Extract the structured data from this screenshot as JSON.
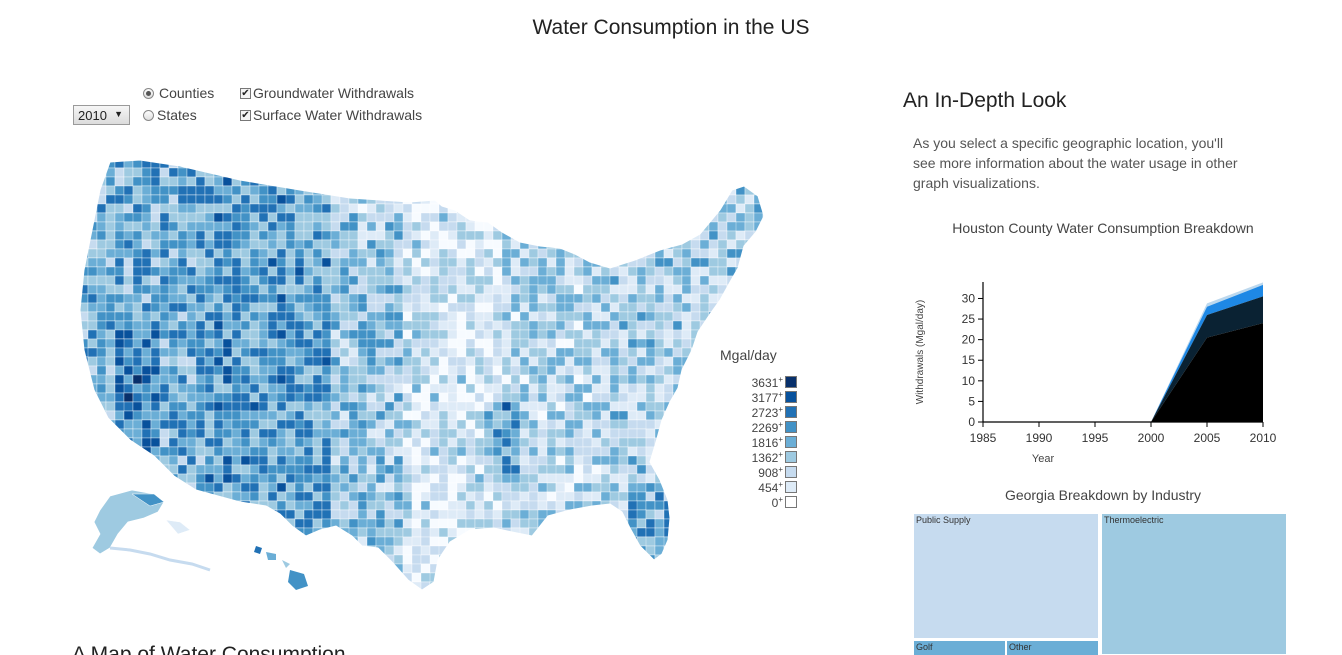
{
  "page": {
    "title": "Water Consumption in the US",
    "map_section_title": "A Map of Water Consumption"
  },
  "controls": {
    "year": {
      "selected": "2010"
    },
    "geo_level": [
      {
        "label": "Counties",
        "checked": true
      },
      {
        "label": "States",
        "checked": false
      }
    ],
    "layers": [
      {
        "label": "Groundwater Withdrawals",
        "checked": true
      },
      {
        "label": "Surface Water Withdrawals",
        "checked": true
      }
    ]
  },
  "map": {
    "palette": [
      "#f7fbff",
      "#deebf7",
      "#c6dbef",
      "#9ecae1",
      "#6baed6",
      "#4292c6",
      "#2171b5",
      "#08519c",
      "#08306b"
    ]
  },
  "legend": {
    "title": "Mgal/day",
    "items": [
      {
        "label": "3631",
        "color": "#08306b"
      },
      {
        "label": "3177",
        "color": "#08519c"
      },
      {
        "label": "2723",
        "color": "#2171b5"
      },
      {
        "label": "2269",
        "color": "#4292c6"
      },
      {
        "label": "1816",
        "color": "#6baed6"
      },
      {
        "label": "1362",
        "color": "#9ecae1"
      },
      {
        "label": "908",
        "color": "#c6dbef"
      },
      {
        "label": "454",
        "color": "#deebf7"
      },
      {
        "label": "0",
        "color": "#ffffff"
      }
    ]
  },
  "sidebar": {
    "heading": "An In-Depth Look",
    "description": "As you select a specific geographic location, you'll see more information about the water usage in other graph visualizations."
  },
  "chart_data": [
    {
      "type": "area",
      "title": "Houston County Water Consumption Breakdown",
      "xlabel": "Year",
      "ylabel": "Withdrawals (Mgal/day)",
      "x": [
        1985,
        1990,
        1995,
        2000,
        2005,
        2010
      ],
      "xticks": [
        "1985",
        "1990",
        "1995",
        "2000",
        "2005",
        "2010"
      ],
      "yticks": [
        "0",
        "5",
        "10",
        "15",
        "20",
        "25",
        "30"
      ],
      "ylim": [
        0,
        34
      ],
      "stacked": true,
      "series": [
        {
          "values": [
            0,
            0,
            0,
            0,
            20.5,
            24
          ],
          "color": "#000000"
        },
        {
          "values": [
            0,
            0,
            0,
            0,
            5.5,
            6.5
          ],
          "color": "#0a2233"
        },
        {
          "values": [
            0,
            0,
            0,
            0,
            2,
            2.8
          ],
          "color": "#1e88e5"
        },
        {
          "values": [
            0,
            0,
            0,
            0,
            0.8,
            0.6
          ],
          "color": "#bcd8ee"
        }
      ]
    },
    {
      "type": "treemap",
      "title": "Georgia Breakdown by Industry",
      "cells": [
        {
          "label": "Public Supply",
          "color": "#c6dbef"
        },
        {
          "label": "Thermoelectric",
          "color": "#9ecae1"
        },
        {
          "label": "Golf",
          "color": "#6baed6"
        },
        {
          "label": "Other",
          "color": "#6baed6"
        }
      ]
    }
  ]
}
